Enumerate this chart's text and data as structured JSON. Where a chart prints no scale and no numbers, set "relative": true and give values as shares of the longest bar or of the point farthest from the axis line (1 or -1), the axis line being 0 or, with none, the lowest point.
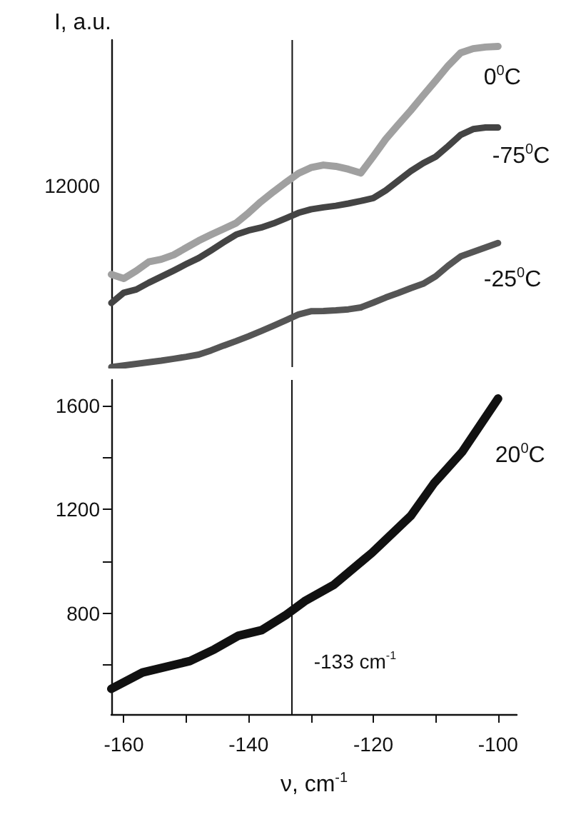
{
  "chart_data": [
    {
      "type": "line",
      "relative": true,
      "ylabel": "I, a.u.",
      "tick_labels": false,
      "grid": false,
      "legend": false,
      "marker": "none",
      "line_style": "solid",
      "categories": [
        null,
        null,
        null,
        null,
        null,
        null,
        null,
        null,
        null,
        null,
        null,
        null,
        null,
        null,
        null,
        null,
        null,
        null,
        null,
        null,
        null,
        null,
        null,
        null,
        null,
        null,
        null,
        null,
        null,
        null,
        null,
        null
      ],
      "annotations": [
        "12000"
      ],
      "series": [
        {
          "name": "0$^{0}$C",
          "color": "#a0a0a0",
          "values": [
            0.289,
            0.276,
            0.3,
            0.328,
            0.336,
            0.35,
            0.372,
            0.394,
            0.413,
            0.431,
            0.449,
            0.481,
            0.516,
            0.547,
            0.576,
            0.604,
            0.622,
            0.63,
            0.626,
            0.617,
            0.605,
            0.657,
            0.711,
            0.756,
            0.8,
            0.847,
            0.893,
            0.94,
            0.98,
            0.993,
            0.998,
            1.0
          ]
        },
        {
          "name": "-75$^{0}$C",
          "color": "#444444",
          "values": [
            0.2,
            0.232,
            0.242,
            0.263,
            0.282,
            0.301,
            0.321,
            0.34,
            0.364,
            0.389,
            0.413,
            0.426,
            0.435,
            0.448,
            0.464,
            0.481,
            0.492,
            0.498,
            0.503,
            0.51,
            0.518,
            0.527,
            0.551,
            0.581,
            0.611,
            0.636,
            0.656,
            0.689,
            0.724,
            0.742,
            0.747,
            0.747
          ]
        },
        {
          "name": "-25$^{0}$C",
          "color": "#555555",
          "values": [
            0,
            0.005,
            0.01,
            0.015,
            0.02,
            0.026,
            0.032,
            0.039,
            0.052,
            0.067,
            0.081,
            0.096,
            0.112,
            0.129,
            0.146,
            0.164,
            0.174,
            0.175,
            0.177,
            0.18,
            0.186,
            0.201,
            0.217,
            0.231,
            0.246,
            0.26,
            0.283,
            0.316,
            0.345,
            0.359,
            0.373,
            0.387
          ]
        }
      ]
    },
    {
      "type": "line",
      "xlabel": "ν, cm$^{-1}$",
      "xlim": [
        -162,
        -97
      ],
      "ylim": [
        410,
        1700
      ],
      "grid": false,
      "legend": false,
      "marker": "none",
      "line_style": "solid",
      "xticks": [
        -160,
        {
          "value": -150,
          "label": null
        },
        -140,
        {
          "value": -130,
          "label": null
        },
        -120,
        {
          "value": -110,
          "label": null
        },
        -100
      ],
      "yticks": [
        {
          "value": 600,
          "label": null
        },
        800,
        {
          "value": 1000,
          "label": null
        },
        1200,
        {
          "value": 1400,
          "label": null
        },
        1600
      ],
      "ref_lines": [
        {
          "axis": "x",
          "value": -133,
          "label": "-133 cm$^{-1}$"
        }
      ],
      "series": [
        {
          "name": "20$^{0}$C",
          "color": "#111111",
          "x": [
            -162,
            -157,
            -149.4,
            -145.5,
            -141.6,
            -137.9,
            -134,
            -131,
            -126.4,
            -120.2,
            -114,
            -110.3,
            -105.7,
            -100
          ],
          "values": [
            508,
            571,
            615,
            660,
            713,
            734,
            793,
            846,
            908,
            1033,
            1175,
            1300,
            1424,
            1628
          ]
        }
      ]
    }
  ]
}
